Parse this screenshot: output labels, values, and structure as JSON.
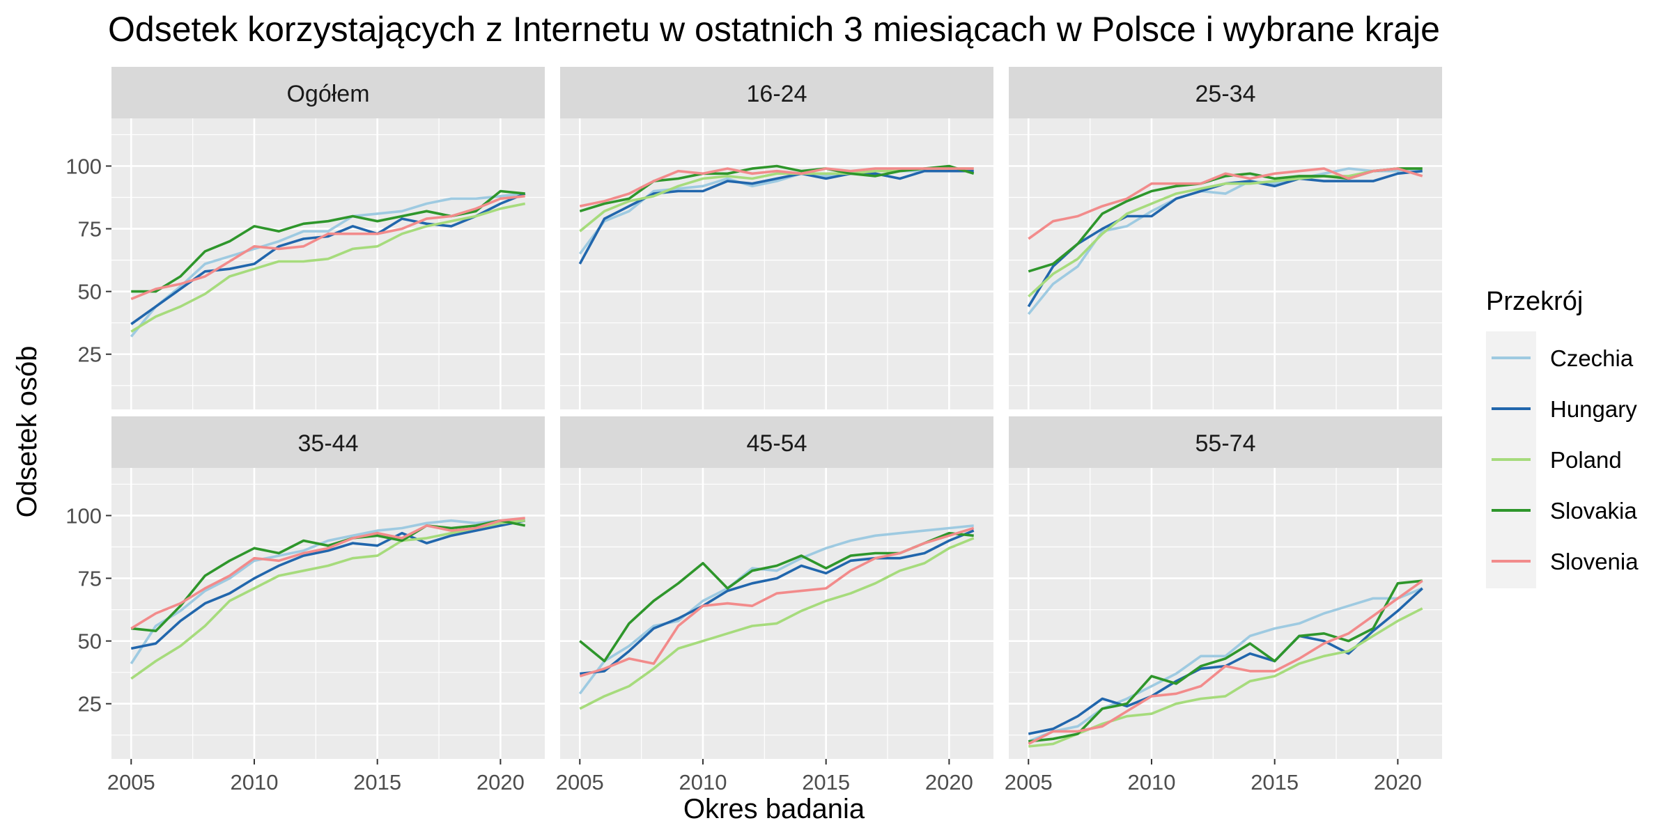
{
  "chart_data": {
    "type": "line",
    "title": "Odsetek korzystających z Internetu w ostatnich 3 miesiącach w Polsce i wybrane kraje",
    "xlabel": "Okres badania",
    "ylabel": "Odsetek osób",
    "legend_title": "Przekrój",
    "legend_position": "right",
    "grid": true,
    "xlim": [
      2004.2,
      2021.8
    ],
    "ylim": [
      3,
      119
    ],
    "x_ticks": [
      2005,
      2010,
      2015,
      2020
    ],
    "y_ticks": [
      25,
      50,
      75,
      100
    ],
    "x": [
      2005,
      2006,
      2007,
      2008,
      2009,
      2010,
      2011,
      2012,
      2013,
      2014,
      2015,
      2016,
      2017,
      2018,
      2019,
      2020,
      2021
    ],
    "series_styles": [
      {
        "name": "Czechia",
        "color": "#9ECAE1"
      },
      {
        "name": "Hungary",
        "color": "#2166AC"
      },
      {
        "name": "Poland",
        "color": "#A6DB7C"
      },
      {
        "name": "Slovakia",
        "color": "#2E962B"
      },
      {
        "name": "Slovenia",
        "color": "#F28B8B"
      }
    ],
    "facets": [
      {
        "label": "Ogółem",
        "series": [
          {
            "name": "Czechia",
            "values": [
              32,
              44,
              52,
              61,
              64,
              67,
              70,
              74,
              74,
              80,
              81,
              82,
              85,
              87,
              87,
              88,
              89
            ]
          },
          {
            "name": "Hungary",
            "values": [
              37,
              44,
              51,
              58,
              59,
              61,
              68,
              71,
              72,
              76,
              73,
              79,
              77,
              76,
              80,
              85,
              89
            ]
          },
          {
            "name": "Poland",
            "values": [
              34,
              40,
              44,
              49,
              56,
              59,
              62,
              62,
              63,
              67,
              68,
              73,
              76,
              78,
              80,
              83,
              85
            ]
          },
          {
            "name": "Slovakia",
            "values": [
              50,
              50,
              56,
              66,
              70,
              76,
              74,
              77,
              78,
              80,
              78,
              80,
              82,
              80,
              82,
              90,
              89
            ]
          },
          {
            "name": "Slovenia",
            "values": [
              47,
              51,
              53,
              56,
              62,
              68,
              67,
              68,
              73,
              73,
              73,
              75,
              79,
              80,
              83,
              87,
              88
            ]
          }
        ]
      },
      {
        "label": "16-24",
        "series": [
          {
            "name": "Czechia",
            "values": [
              65,
              78,
              82,
              90,
              91,
              92,
              95,
              92,
              94,
              97,
              96,
              97,
              98,
              98,
              98,
              98,
              98
            ]
          },
          {
            "name": "Hungary",
            "values": [
              61,
              79,
              84,
              89,
              90,
              90,
              94,
              93,
              95,
              97,
              95,
              97,
              97,
              95,
              98,
              98,
              98
            ]
          },
          {
            "name": "Poland",
            "values": [
              74,
              82,
              86,
              88,
              92,
              95,
              96,
              95,
              97,
              97,
              97,
              97,
              98,
              98,
              99,
              99,
              99
            ]
          },
          {
            "name": "Slovakia",
            "values": [
              82,
              85,
              87,
              94,
              95,
              97,
              97,
              99,
              100,
              98,
              99,
              97,
              96,
              98,
              99,
              100,
              97
            ]
          },
          {
            "name": "Slovenia",
            "values": [
              84,
              86,
              89,
              94,
              98,
              97,
              99,
              97,
              98,
              97,
              99,
              98,
              99,
              99,
              99,
              99,
              99
            ]
          }
        ]
      },
      {
        "label": "25-34",
        "series": [
          {
            "name": "Czechia",
            "values": [
              41,
              53,
              60,
              74,
              76,
              82,
              87,
              90,
              89,
              94,
              93,
              95,
              97,
              99,
              98,
              98,
              98
            ]
          },
          {
            "name": "Hungary",
            "values": [
              44,
              60,
              69,
              75,
              80,
              80,
              87,
              90,
              93,
              94,
              92,
              95,
              94,
              94,
              94,
              97,
              98
            ]
          },
          {
            "name": "Poland",
            "values": [
              48,
              57,
              63,
              73,
              81,
              85,
              89,
              91,
              93,
              93,
              94,
              95,
              96,
              96,
              98,
              99,
              99
            ]
          },
          {
            "name": "Slovakia",
            "values": [
              58,
              61,
              69,
              81,
              86,
              90,
              92,
              93,
              96,
              97,
              95,
              96,
              96,
              95,
              98,
              99,
              99
            ]
          },
          {
            "name": "Slovenia",
            "values": [
              71,
              78,
              80,
              84,
              87,
              93,
              93,
              93,
              97,
              95,
              97,
              98,
              99,
              95,
              98,
              99,
              96
            ]
          }
        ]
      },
      {
        "label": "35-44",
        "series": [
          {
            "name": "Czechia",
            "values": [
              41,
              56,
              62,
              70,
              75,
              82,
              84,
              86,
              90,
              92,
              94,
              95,
              97,
              98,
              97,
              98,
              98
            ]
          },
          {
            "name": "Hungary",
            "values": [
              47,
              49,
              58,
              65,
              69,
              75,
              80,
              84,
              86,
              89,
              88,
              93,
              89,
              92,
              94,
              96,
              98
            ]
          },
          {
            "name": "Poland",
            "values": [
              35,
              42,
              48,
              56,
              66,
              71,
              76,
              78,
              80,
              83,
              84,
              90,
              91,
              93,
              95,
              97,
              98
            ]
          },
          {
            "name": "Slovakia",
            "values": [
              55,
              54,
              64,
              76,
              82,
              87,
              85,
              90,
              88,
              91,
              92,
              90,
              96,
              95,
              96,
              98,
              96
            ]
          },
          {
            "name": "Slovenia",
            "values": [
              55,
              61,
              65,
              71,
              76,
              83,
              82,
              85,
              87,
              91,
              93,
              91,
              96,
              94,
              95,
              98,
              99
            ]
          }
        ]
      },
      {
        "label": "45-54",
        "series": [
          {
            "name": "Czechia",
            "values": [
              29,
              42,
              48,
              56,
              58,
              66,
              71,
              79,
              78,
              83,
              87,
              90,
              92,
              93,
              94,
              95,
              96
            ]
          },
          {
            "name": "Hungary",
            "values": [
              37,
              38,
              46,
              55,
              59,
              64,
              70,
              73,
              75,
              80,
              77,
              82,
              83,
              83,
              85,
              90,
              94
            ]
          },
          {
            "name": "Poland",
            "values": [
              23,
              28,
              32,
              39,
              47,
              50,
              53,
              56,
              57,
              62,
              66,
              69,
              73,
              78,
              81,
              87,
              91
            ]
          },
          {
            "name": "Slovakia",
            "values": [
              50,
              42,
              57,
              66,
              73,
              81,
              71,
              78,
              80,
              84,
              79,
              84,
              85,
              85,
              89,
              93,
              92
            ]
          },
          {
            "name": "Slovenia",
            "values": [
              36,
              39,
              43,
              41,
              56,
              64,
              65,
              64,
              69,
              70,
              71,
              78,
              83,
              85,
              89,
              92,
              95
            ]
          }
        ]
      },
      {
        "label": "55-74",
        "series": [
          {
            "name": "Czechia",
            "values": [
              10,
              14,
              16,
              23,
              27,
              32,
              37,
              44,
              44,
              52,
              55,
              57,
              61,
              64,
              67,
              67,
              71
            ]
          },
          {
            "name": "Hungary",
            "values": [
              13,
              15,
              20,
              27,
              24,
              28,
              34,
              39,
              40,
              45,
              42,
              52,
              50,
              45,
              54,
              62,
              71
            ]
          },
          {
            "name": "Poland",
            "values": [
              8,
              9,
              13,
              17,
              20,
              21,
              25,
              27,
              28,
              34,
              36,
              41,
              44,
              46,
              52,
              58,
              63
            ]
          },
          {
            "name": "Slovakia",
            "values": [
              10,
              11,
              13,
              23,
              25,
              36,
              33,
              40,
              43,
              49,
              42,
              52,
              53,
              50,
              55,
              73,
              74
            ]
          },
          {
            "name": "Slovenia",
            "values": [
              9,
              14,
              14,
              16,
              22,
              28,
              29,
              32,
              40,
              38,
              38,
              43,
              49,
              53,
              60,
              67,
              74
            ]
          }
        ]
      }
    ]
  }
}
